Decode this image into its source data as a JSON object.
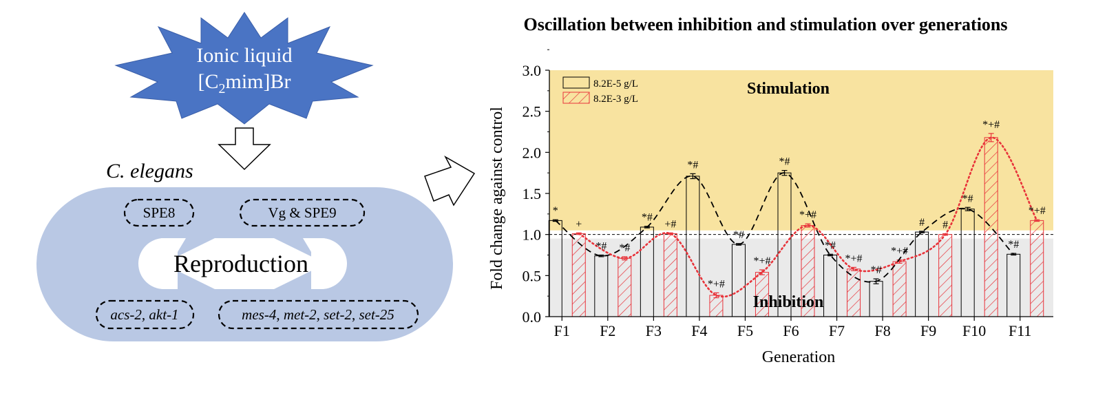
{
  "diagram": {
    "ionic_liquid_line1": "Ionic liquid",
    "ionic_liquid_line2_a": "[C",
    "ionic_liquid_line2_sub": "2",
    "ionic_liquid_line2_b": "mim]Br",
    "organism": "C. elegans",
    "center_label": "Reproduction",
    "box_spe8": "SPE8",
    "box_vg_spe9": "Vg & SPE9",
    "box_genes_left": "acs-2, akt-1",
    "box_genes_right_a": "mes-4",
    "box_genes_right_b": ", ",
    "box_genes_right_c": "met-2",
    "box_genes_right_d": ", ",
    "box_genes_right_e": "set-2",
    "box_genes_right_f": ", ",
    "box_genes_right_g": "set-25"
  },
  "colors": {
    "starburst": "#4a74c4",
    "ellipse": "#b9c8e4",
    "stimulation_bg": "#f8e3a0",
    "inhibition_bg": "#eaeaea",
    "series_low": "#000000",
    "series_high": "#e8333a"
  },
  "chart_data": {
    "type": "bar",
    "title": "Oscillation between inhibition and stimulation over generations",
    "xlabel": "Generation",
    "ylabel": "Fold change against control",
    "ylim": [
      0,
      3.0
    ],
    "yticks": [
      "0.0",
      "0.5",
      "1.0",
      "1.5",
      "2.0",
      "2.5",
      "3.0"
    ],
    "categories": [
      "F1",
      "F2",
      "F3",
      "F4",
      "F5",
      "F6",
      "F7",
      "F8",
      "F9",
      "F10",
      "F11"
    ],
    "zone_labels": {
      "upper": "Stimulation",
      "lower": "Inhibition"
    },
    "reference_line": 1.0,
    "series": [
      {
        "name": "8.2E-5 g/L",
        "style": "open bar, black dashed trend",
        "values": [
          1.17,
          0.74,
          1.09,
          1.71,
          0.88,
          1.75,
          0.75,
          0.43,
          1.03,
          1.31,
          0.76
        ],
        "errors": [
          0.01,
          0.01,
          0.01,
          0.03,
          0.01,
          0.03,
          0.01,
          0.03,
          0.01,
          0.02,
          0.01
        ],
        "labels": [
          "*",
          "*#",
          "*#",
          "*#",
          "*#",
          "*#",
          "*#",
          "*#",
          "#",
          "*#",
          "*#"
        ]
      },
      {
        "name": "8.2E-3 g/L",
        "style": "red hatched bar, red dotted trend",
        "values": [
          1.01,
          0.71,
          1.01,
          0.26,
          0.54,
          1.11,
          0.58,
          0.67,
          1.0,
          2.18,
          1.17
        ],
        "errors": [
          0.01,
          0.02,
          0.01,
          0.03,
          0.03,
          0.02,
          0.02,
          0.02,
          0.01,
          0.05,
          0.01
        ],
        "labels": [
          "+",
          "*#",
          "+#",
          "*+#",
          "*+#",
          "*+#",
          "*+#",
          "*+#",
          "#",
          "*+#",
          "*+#"
        ]
      }
    ]
  }
}
